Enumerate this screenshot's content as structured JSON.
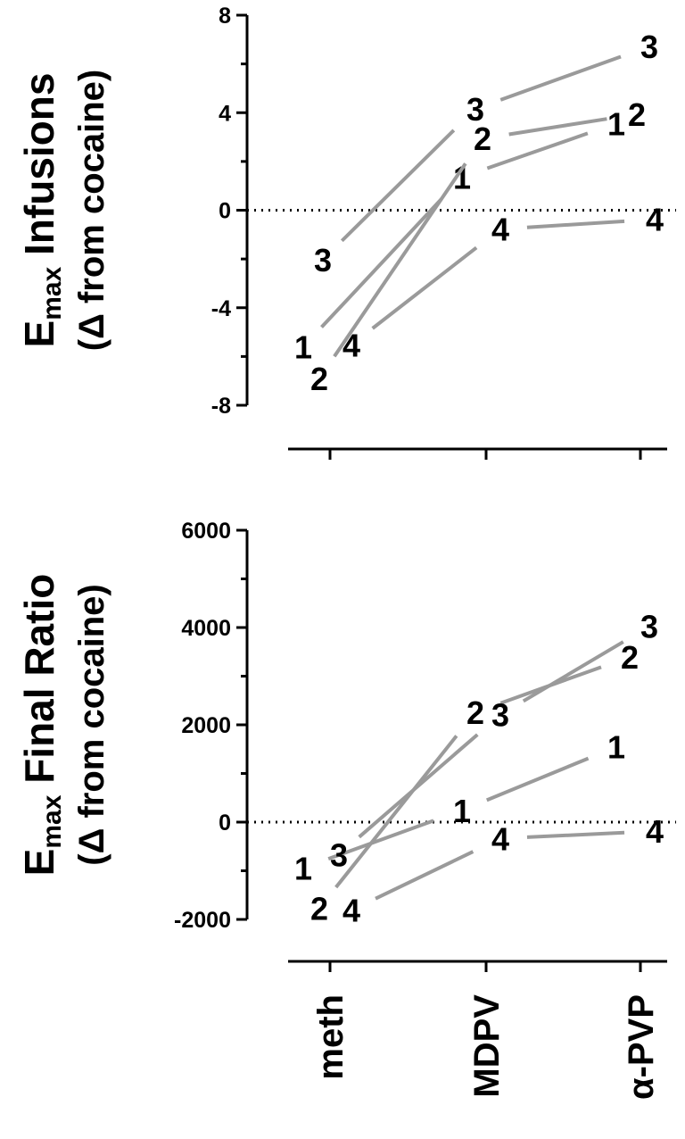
{
  "chart_data": [
    {
      "type": "line",
      "ylabel_main": "E",
      "ylabel_sub": "max",
      "ylabel_rest": " Infusions",
      "ylabel_line2": "(Δ from cocaine)",
      "categories": [
        "meth",
        "MDPV",
        "α-PVP"
      ],
      "yticks": [
        "8",
        "4",
        "0",
        "-4",
        "-8"
      ],
      "ylim": [
        -8,
        8
      ],
      "reference_line": 0,
      "series": [
        {
          "name": "1",
          "values": [
            -5.6,
            1.8,
            4.0
          ]
        },
        {
          "name": "2",
          "values": [
            -6.1,
            3.6,
            4.6
          ]
        },
        {
          "name": "3",
          "values": [
            -1.0,
            4.3,
            6.5
          ]
        },
        {
          "name": "4",
          "values": [
            -5.3,
            -0.7,
            -0.3
          ]
        }
      ]
    },
    {
      "type": "line",
      "ylabel_main": "E",
      "ylabel_sub": "max",
      "ylabel_rest": " Final Ratio",
      "ylabel_line2": "(Δ from cocaine)",
      "categories": [
        "meth",
        "MDPV",
        "α-PVP"
      ],
      "yticks": [
        "6000",
        "4000",
        "2000",
        "0",
        "-2000"
      ],
      "ylim": [
        -2000,
        6000
      ],
      "reference_line": 0,
      "series": [
        {
          "name": "1",
          "values": [
            -1200,
            500,
            1620
          ]
        },
        {
          "name": "2",
          "values": [
            -1550,
            2150,
            3250
          ]
        },
        {
          "name": "3",
          "values": [
            -850,
            1950,
            3950
          ]
        },
        {
          "name": "4",
          "values": [
            -1700,
            -300,
            -150
          ]
        }
      ]
    }
  ]
}
